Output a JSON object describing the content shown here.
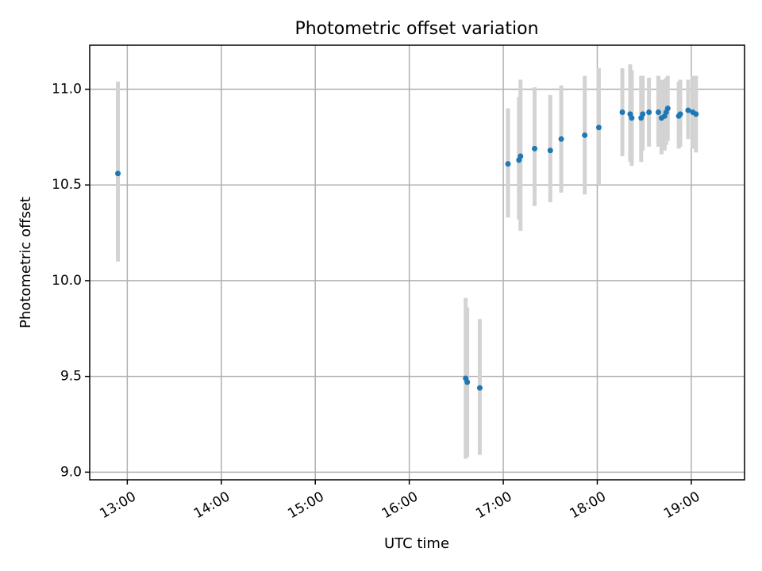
{
  "chart_data": {
    "type": "scatter",
    "title": "Photometric offset variation",
    "xlabel": "UTC time",
    "ylabel": "Photometric offset",
    "xlim": [
      "12:36",
      "19:34"
    ],
    "ylim": [
      8.96,
      11.23
    ],
    "xticks": [
      "13:00",
      "14:00",
      "15:00",
      "16:00",
      "17:00",
      "18:00",
      "19:00"
    ],
    "yticks": [
      "9.0",
      "9.5",
      "10.0",
      "10.5",
      "11.0"
    ],
    "grid": true,
    "colors": {
      "point": "#1f77b4",
      "errorbar": "#d3d3d3",
      "grid": "#b0b0b0"
    },
    "series": [
      {
        "points": [
          {
            "x": "12:54",
            "y": 10.56,
            "ylow": 10.1,
            "yhigh": 11.04
          },
          {
            "x": "16:36",
            "y": 9.49,
            "ylow": 9.07,
            "yhigh": 9.91
          },
          {
            "x": "16:37",
            "y": 9.47,
            "ylow": 9.08,
            "yhigh": 9.86
          },
          {
            "x": "16:45",
            "y": 9.44,
            "ylow": 9.09,
            "yhigh": 9.8
          },
          {
            "x": "17:03",
            "y": 10.61,
            "ylow": 10.33,
            "yhigh": 10.9
          },
          {
            "x": "17:10",
            "y": 10.63,
            "ylow": 10.32,
            "yhigh": 10.96
          },
          {
            "x": "17:11",
            "y": 10.65,
            "ylow": 10.26,
            "yhigh": 11.05
          },
          {
            "x": "17:20",
            "y": 10.69,
            "ylow": 10.39,
            "yhigh": 11.01
          },
          {
            "x": "17:30",
            "y": 10.68,
            "ylow": 10.41,
            "yhigh": 10.97
          },
          {
            "x": "17:37",
            "y": 10.74,
            "ylow": 10.46,
            "yhigh": 11.02
          },
          {
            "x": "17:52",
            "y": 10.76,
            "ylow": 10.45,
            "yhigh": 11.07
          },
          {
            "x": "18:01",
            "y": 10.8,
            "ylow": 10.5,
            "yhigh": 11.11
          },
          {
            "x": "18:16",
            "y": 10.88,
            "ylow": 10.65,
            "yhigh": 11.11
          },
          {
            "x": "18:21",
            "y": 10.87,
            "ylow": 10.62,
            "yhigh": 11.13
          },
          {
            "x": "18:22",
            "y": 10.85,
            "ylow": 10.6,
            "yhigh": 11.1
          },
          {
            "x": "18:28",
            "y": 10.85,
            "ylow": 10.62,
            "yhigh": 11.07
          },
          {
            "x": "18:29",
            "y": 10.87,
            "ylow": 10.68,
            "yhigh": 11.07
          },
          {
            "x": "18:33",
            "y": 10.88,
            "ylow": 10.7,
            "yhigh": 11.06
          },
          {
            "x": "18:39",
            "y": 10.88,
            "ylow": 10.7,
            "yhigh": 11.07
          },
          {
            "x": "18:41",
            "y": 10.85,
            "ylow": 10.66,
            "yhigh": 11.05
          },
          {
            "x": "18:43",
            "y": 10.86,
            "ylow": 10.68,
            "yhigh": 11.05
          },
          {
            "x": "18:44",
            "y": 10.88,
            "ylow": 10.71,
            "yhigh": 11.06
          },
          {
            "x": "18:45",
            "y": 10.9,
            "ylow": 10.73,
            "yhigh": 11.07
          },
          {
            "x": "18:52",
            "y": 10.86,
            "ylow": 10.69,
            "yhigh": 11.04
          },
          {
            "x": "18:53",
            "y": 10.87,
            "ylow": 10.7,
            "yhigh": 11.05
          },
          {
            "x": "18:58",
            "y": 10.89,
            "ylow": 10.74,
            "yhigh": 11.05
          },
          {
            "x": "19:01",
            "y": 10.88,
            "ylow": 10.69,
            "yhigh": 11.07
          },
          {
            "x": "19:03",
            "y": 10.87,
            "ylow": 10.67,
            "yhigh": 11.07
          }
        ]
      }
    ]
  }
}
